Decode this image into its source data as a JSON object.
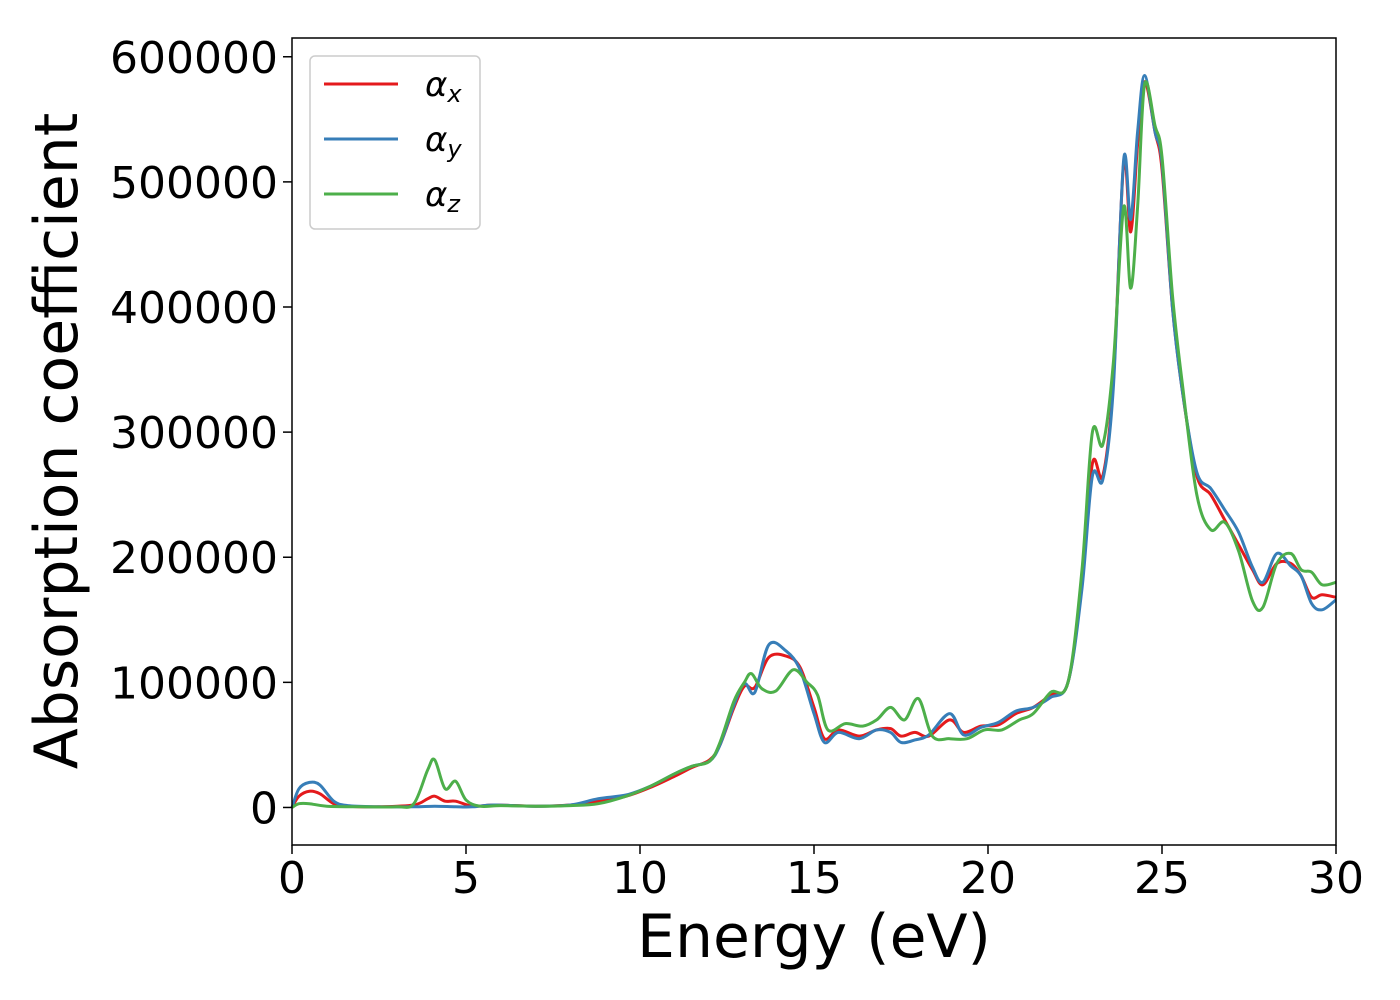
{
  "chart_data": {
    "type": "line",
    "xlabel": "Energy (eV)",
    "ylabel": "Absorption coefficient",
    "xlim": [
      0,
      30
    ],
    "ylim": [
      -30000,
      615000
    ],
    "xticks": [
      0,
      5,
      10,
      15,
      20,
      25,
      30
    ],
    "yticks": [
      0,
      100000,
      200000,
      300000,
      400000,
      500000,
      600000
    ],
    "grid": false,
    "legend_position": "top-left",
    "series": [
      {
        "name": "α_x",
        "symbol": "α",
        "subscript": "x",
        "color": "#e41a1c",
        "points": [
          [
            0,
            0
          ],
          [
            0.2,
            9000
          ],
          [
            0.5,
            13000
          ],
          [
            0.8,
            11000
          ],
          [
            1.2,
            3000
          ],
          [
            1.6,
            1000
          ],
          [
            2.5,
            500
          ],
          [
            3.5,
            2000
          ],
          [
            3.9,
            7000
          ],
          [
            4.1,
            9000
          ],
          [
            4.4,
            5000
          ],
          [
            4.7,
            5000
          ],
          [
            5.2,
            1000
          ],
          [
            5.8,
            2000
          ],
          [
            7,
            1000
          ],
          [
            8,
            2000
          ],
          [
            8.8,
            5000
          ],
          [
            9.6,
            9000
          ],
          [
            10.3,
            16000
          ],
          [
            11,
            25000
          ],
          [
            11.5,
            32000
          ],
          [
            12,
            38000
          ],
          [
            12.3,
            50000
          ],
          [
            12.7,
            80000
          ],
          [
            13.0,
            97000
          ],
          [
            13.3,
            96000
          ],
          [
            13.7,
            120000
          ],
          [
            14.2,
            121000
          ],
          [
            14.6,
            112000
          ],
          [
            15.0,
            80000
          ],
          [
            15.3,
            55000
          ],
          [
            15.7,
            62000
          ],
          [
            16.3,
            57000
          ],
          [
            16.8,
            62000
          ],
          [
            17.2,
            63000
          ],
          [
            17.5,
            57000
          ],
          [
            17.9,
            60000
          ],
          [
            18.3,
            57000
          ],
          [
            18.9,
            70000
          ],
          [
            19.3,
            60000
          ],
          [
            19.8,
            65000
          ],
          [
            20.3,
            66000
          ],
          [
            20.8,
            75000
          ],
          [
            21.3,
            80000
          ],
          [
            21.8,
            90000
          ],
          [
            22.3,
            100000
          ],
          [
            22.7,
            180000
          ],
          [
            23.0,
            275000
          ],
          [
            23.3,
            265000
          ],
          [
            23.6,
            340000
          ],
          [
            23.9,
            515000
          ],
          [
            24.1,
            460000
          ],
          [
            24.3,
            530000
          ],
          [
            24.5,
            580000
          ],
          [
            24.8,
            540000
          ],
          [
            25.0,
            510000
          ],
          [
            25.3,
            400000
          ],
          [
            25.6,
            330000
          ],
          [
            26.0,
            265000
          ],
          [
            26.4,
            250000
          ],
          [
            26.8,
            230000
          ],
          [
            27.2,
            210000
          ],
          [
            27.6,
            190000
          ],
          [
            27.9,
            178000
          ],
          [
            28.3,
            195000
          ],
          [
            28.7,
            195000
          ],
          [
            29.0,
            185000
          ],
          [
            29.3,
            168000
          ],
          [
            29.6,
            170000
          ],
          [
            30,
            168000
          ]
        ]
      },
      {
        "name": "α_y",
        "symbol": "α",
        "subscript": "y",
        "color": "#377eb8",
        "points": [
          [
            0,
            0
          ],
          [
            0.2,
            15000
          ],
          [
            0.5,
            20000
          ],
          [
            0.8,
            18000
          ],
          [
            1.2,
            5000
          ],
          [
            1.6,
            1500
          ],
          [
            2.5,
            500
          ],
          [
            3.5,
            500
          ],
          [
            4.1,
            1000
          ],
          [
            4.7,
            500
          ],
          [
            5.2,
            500
          ],
          [
            5.8,
            2000
          ],
          [
            7,
            1000
          ],
          [
            8,
            2000
          ],
          [
            8.8,
            7000
          ],
          [
            9.6,
            10000
          ],
          [
            10.3,
            17000
          ],
          [
            11,
            27000
          ],
          [
            11.5,
            33000
          ],
          [
            12,
            37000
          ],
          [
            12.3,
            50000
          ],
          [
            12.7,
            82000
          ],
          [
            13.0,
            99000
          ],
          [
            13.3,
            92000
          ],
          [
            13.7,
            130000
          ],
          [
            14.2,
            125000
          ],
          [
            14.6,
            110000
          ],
          [
            15.0,
            75000
          ],
          [
            15.3,
            52000
          ],
          [
            15.7,
            60000
          ],
          [
            16.3,
            55000
          ],
          [
            16.8,
            62000
          ],
          [
            17.2,
            60000
          ],
          [
            17.5,
            52000
          ],
          [
            17.9,
            54000
          ],
          [
            18.3,
            58000
          ],
          [
            18.9,
            75000
          ],
          [
            19.3,
            58000
          ],
          [
            19.8,
            64000
          ],
          [
            20.3,
            68000
          ],
          [
            20.8,
            77000
          ],
          [
            21.3,
            80000
          ],
          [
            21.8,
            88000
          ],
          [
            22.3,
            100000
          ],
          [
            22.7,
            175000
          ],
          [
            23.0,
            265000
          ],
          [
            23.3,
            262000
          ],
          [
            23.6,
            335000
          ],
          [
            23.9,
            518000
          ],
          [
            24.1,
            470000
          ],
          [
            24.3,
            540000
          ],
          [
            24.5,
            585000
          ],
          [
            24.8,
            540000
          ],
          [
            25.0,
            515000
          ],
          [
            25.3,
            400000
          ],
          [
            25.6,
            330000
          ],
          [
            26.0,
            268000
          ],
          [
            26.4,
            255000
          ],
          [
            26.8,
            238000
          ],
          [
            27.2,
            220000
          ],
          [
            27.6,
            192000
          ],
          [
            27.9,
            180000
          ],
          [
            28.3,
            203000
          ],
          [
            28.7,
            193000
          ],
          [
            29.0,
            185000
          ],
          [
            29.3,
            163000
          ],
          [
            29.6,
            158000
          ],
          [
            30,
            166000
          ]
        ]
      },
      {
        "name": "α_z",
        "symbol": "α",
        "subscript": "z",
        "color": "#4daf4a",
        "points": [
          [
            0,
            0
          ],
          [
            0.2,
            3000
          ],
          [
            0.5,
            3000
          ],
          [
            1.0,
            1000
          ],
          [
            2.0,
            500
          ],
          [
            3.0,
            500
          ],
          [
            3.5,
            3000
          ],
          [
            3.9,
            30000
          ],
          [
            4.1,
            38000
          ],
          [
            4.4,
            15000
          ],
          [
            4.7,
            21000
          ],
          [
            5.0,
            6000
          ],
          [
            5.4,
            1000
          ],
          [
            6,
            1500
          ],
          [
            7,
            1000
          ],
          [
            8,
            1500
          ],
          [
            8.8,
            3000
          ],
          [
            9.6,
            9000
          ],
          [
            10.3,
            17000
          ],
          [
            11,
            27000
          ],
          [
            11.5,
            33000
          ],
          [
            12,
            37000
          ],
          [
            12.3,
            52000
          ],
          [
            12.7,
            85000
          ],
          [
            13.0,
            100000
          ],
          [
            13.2,
            107000
          ],
          [
            13.5,
            95000
          ],
          [
            13.9,
            93000
          ],
          [
            14.4,
            110000
          ],
          [
            14.8,
            100000
          ],
          [
            15.1,
            90000
          ],
          [
            15.4,
            62000
          ],
          [
            15.9,
            67000
          ],
          [
            16.4,
            65000
          ],
          [
            16.8,
            70000
          ],
          [
            17.2,
            80000
          ],
          [
            17.6,
            70000
          ],
          [
            18.0,
            87000
          ],
          [
            18.4,
            57000
          ],
          [
            18.9,
            55000
          ],
          [
            19.4,
            55000
          ],
          [
            19.9,
            62000
          ],
          [
            20.4,
            62000
          ],
          [
            20.9,
            70000
          ],
          [
            21.3,
            75000
          ],
          [
            21.8,
            92000
          ],
          [
            22.3,
            100000
          ],
          [
            22.7,
            190000
          ],
          [
            23.0,
            300000
          ],
          [
            23.3,
            290000
          ],
          [
            23.6,
            355000
          ],
          [
            23.9,
            480000
          ],
          [
            24.1,
            415000
          ],
          [
            24.3,
            480000
          ],
          [
            24.5,
            578000
          ],
          [
            24.8,
            545000
          ],
          [
            25.0,
            520000
          ],
          [
            25.3,
            410000
          ],
          [
            25.6,
            335000
          ],
          [
            26.0,
            250000
          ],
          [
            26.4,
            222000
          ],
          [
            26.8,
            228000
          ],
          [
            27.2,
            205000
          ],
          [
            27.6,
            165000
          ],
          [
            27.9,
            160000
          ],
          [
            28.3,
            195000
          ],
          [
            28.7,
            203000
          ],
          [
            29.0,
            190000
          ],
          [
            29.3,
            188000
          ],
          [
            29.6,
            178000
          ],
          [
            30,
            180000
          ]
        ]
      }
    ]
  }
}
